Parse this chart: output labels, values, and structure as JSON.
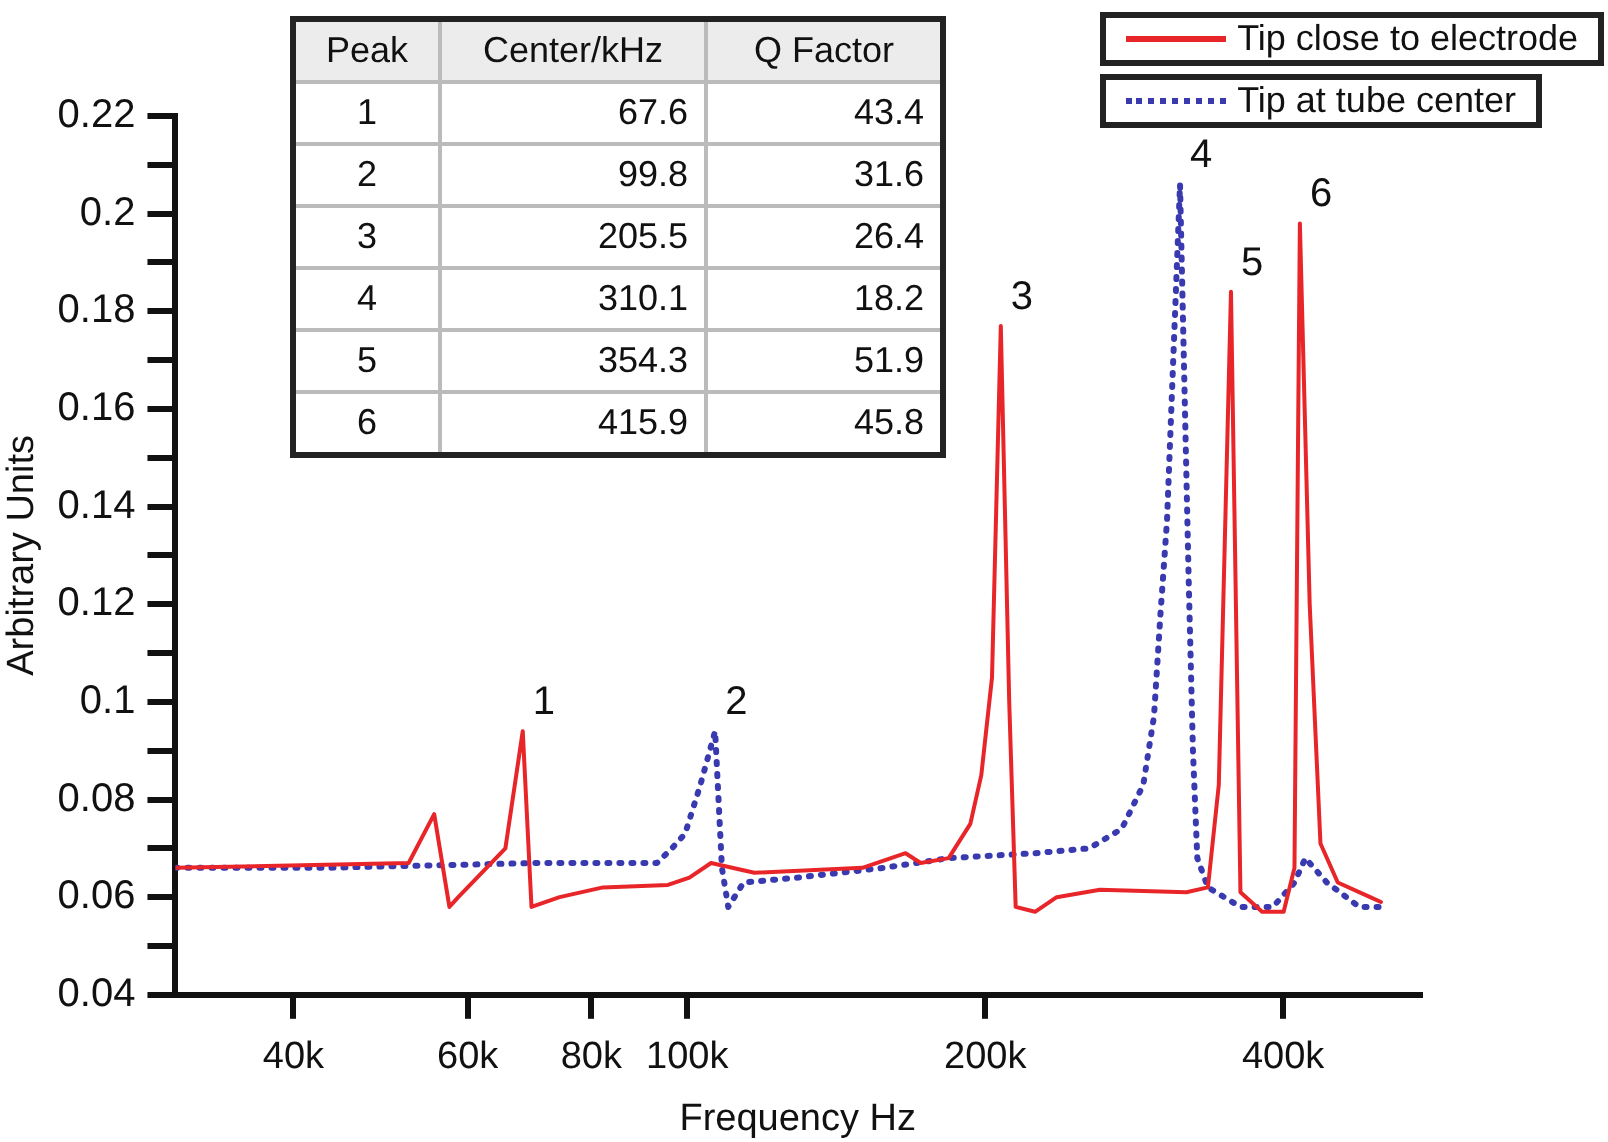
{
  "chart_data": {
    "type": "line",
    "xlabel": "Frequency Hz",
    "ylabel": "Arbitrary Units",
    "log": "x",
    "grid": false,
    "legend": "top right",
    "marker": "none",
    "xlim": [
      30400,
      550000
    ],
    "xticks": [
      {
        "value": 40000,
        "label": "40k"
      },
      {
        "value": 60000,
        "label": "60k"
      },
      {
        "value": 80000,
        "label": "80k"
      },
      {
        "value": 100000,
        "label": "100k"
      },
      {
        "value": 200000,
        "label": "200k"
      },
      {
        "value": 400000,
        "label": "400k"
      }
    ],
    "ylim": [
      0.04,
      0.22
    ],
    "yticks": [
      0.04,
      {
        "value": 0.05,
        "label": null
      },
      0.06,
      {
        "value": 0.07,
        "label": null
      },
      0.08,
      {
        "value": 0.09,
        "label": null
      },
      0.1,
      {
        "value": 0.11,
        "label": null
      },
      0.12,
      {
        "value": 0.13,
        "label": null
      },
      0.14,
      {
        "value": 0.15,
        "label": null
      },
      0.16,
      {
        "value": 0.17,
        "label": null
      },
      0.18,
      {
        "value": 0.19,
        "label": null
      },
      0.2,
      {
        "value": 0.21,
        "label": null
      },
      0.22
    ],
    "series": [
      {
        "name": "Tip close to electrode",
        "color": "#e8262a",
        "line_style": "solid",
        "x": [
          30400,
          52300,
          55500,
          57500,
          58700,
          65500,
          68200,
          69600,
          74300,
          82200,
          95600,
          100500,
          105700,
          116900,
          150300,
          166200,
          172100,
          183700,
          193200,
          198200,
          203200,
          207400,
          211500,
          214700,
          224600,
          236200,
          261200,
          319400,
          335800,
          344400,
          354300,
          362200,
          380900,
          400500,
          410700,
          415900,
          425500,
          436300,
          454200,
          489800,
          502200
        ],
        "values": [
          0.066,
          0.067,
          0.077,
          0.058,
          0.06,
          0.07,
          0.094,
          0.058,
          0.06,
          0.062,
          0.0625,
          0.064,
          0.067,
          0.065,
          0.066,
          0.069,
          0.067,
          0.068,
          0.075,
          0.085,
          0.105,
          0.177,
          0.1,
          0.058,
          0.057,
          0.06,
          0.0615,
          0.061,
          0.062,
          0.083,
          0.184,
          0.061,
          0.057,
          0.057,
          0.066,
          0.198,
          0.12,
          0.071,
          0.063,
          0.06,
          0.059
        ]
      },
      {
        "name": "Tip at tube center",
        "color": "#3a3ab0",
        "line_style": "dotted",
        "x": [
          30400,
          42800,
          70700,
          93200,
          96500,
          99500,
          103100,
          106700,
          108400,
          110000,
          114000,
          129200,
          158000,
          183700,
          224600,
          254800,
          274800,
          288900,
          296200,
          300700,
          305300,
          314700,
          321100,
          324300,
          327600,
          335800,
          362200,
          390600,
          410700,
          421200,
          442900,
          477500,
          502200
        ],
        "values": [
          0.066,
          0.066,
          0.067,
          0.067,
          0.07,
          0.073,
          0.083,
          0.094,
          0.066,
          0.058,
          0.063,
          0.064,
          0.066,
          0.068,
          0.069,
          0.07,
          0.074,
          0.083,
          0.097,
          0.118,
          0.137,
          0.206,
          0.125,
          0.09,
          0.068,
          0.062,
          0.058,
          0.058,
          0.063,
          0.068,
          0.063,
          0.058,
          0.058
        ]
      }
    ],
    "annotations": [
      {
        "text": "1",
        "x": 68200,
        "y": 0.094
      },
      {
        "text": "2",
        "x": 106700,
        "y": 0.094
      },
      {
        "text": "3",
        "x": 207400,
        "y": 0.177
      },
      {
        "text": "4",
        "x": 314700,
        "y": 0.206
      },
      {
        "text": "5",
        "x": 354300,
        "y": 0.184
      },
      {
        "text": "6",
        "x": 415900,
        "y": 0.198
      },
      "Peak",
      "Center/kHz",
      "Q Factor",
      "1",
      "67.6",
      "43.4",
      "2",
      "99.8",
      "31.6",
      "3",
      "205.5",
      "26.4",
      "4",
      "310.1",
      "18.2",
      "5",
      "354.3",
      "51.9",
      "6",
      "415.9",
      "45.8"
    ]
  }
}
